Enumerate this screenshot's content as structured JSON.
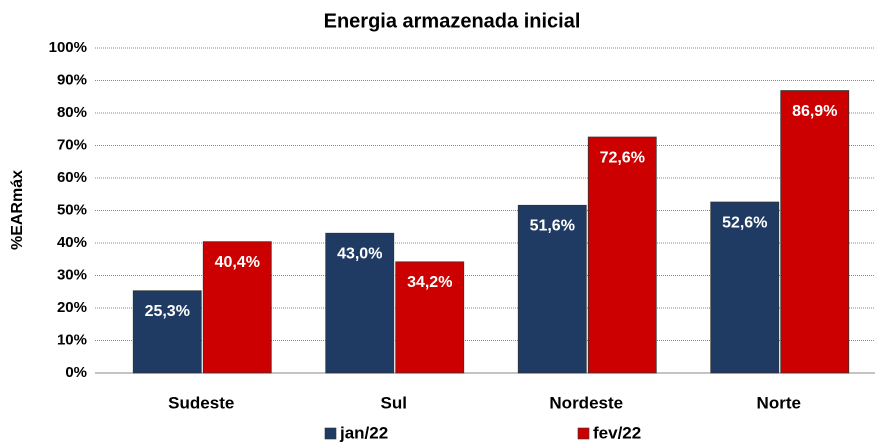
{
  "chart_data": {
    "type": "bar",
    "title": "Energia armazenada inicial",
    "y_label": "%EARmáx",
    "categories": [
      "Sudeste",
      "Sul",
      "Nordeste",
      "Norte"
    ],
    "series": [
      {
        "name": "jan/22",
        "color": "#1f3a63",
        "values": [
          25.3,
          43.0,
          51.6,
          52.6
        ],
        "value_labels": [
          "25,3%",
          "43,0%",
          "51,6%",
          "52,6%"
        ]
      },
      {
        "name": "fev/22",
        "color": "#cc0000",
        "values": [
          40.4,
          34.2,
          72.6,
          86.9
        ],
        "value_labels": [
          "40,4%",
          "34,2%",
          "72,6%",
          "86,9%"
        ]
      }
    ],
    "ylim": [
      0,
      100
    ],
    "yticks": [
      {
        "value": 0,
        "label": "0%"
      },
      {
        "value": 10,
        "label": "10%"
      },
      {
        "value": 20,
        "label": "20%"
      },
      {
        "value": 30,
        "label": "30%"
      },
      {
        "value": 40,
        "label": "40%"
      },
      {
        "value": 50,
        "label": "50%"
      },
      {
        "value": 60,
        "label": "60%"
      },
      {
        "value": 70,
        "label": "70%"
      },
      {
        "value": 80,
        "label": "80%"
      },
      {
        "value": 90,
        "label": "90%"
      },
      {
        "value": 100,
        "label": "100%"
      }
    ],
    "grid": true,
    "legend": "bottom"
  }
}
